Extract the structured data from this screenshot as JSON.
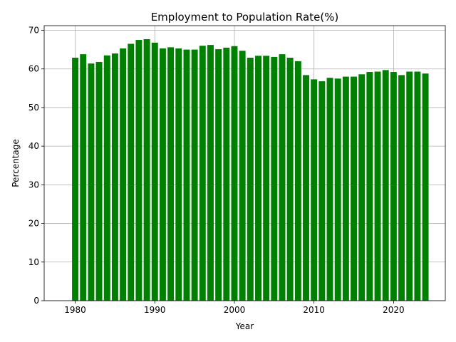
{
  "chart_data": {
    "type": "bar",
    "title": "Employment to Population Rate(%)",
    "xlabel": "Year",
    "ylabel": "Percentage",
    "bar_color": "#008000",
    "grid": true,
    "xlim": [
      1976.1,
      2026.5
    ],
    "ylim": [
      0,
      71.2
    ],
    "xticks": [
      1980,
      1990,
      2000,
      2010,
      2020
    ],
    "yticks": [
      0,
      10,
      20,
      30,
      40,
      50,
      60,
      70
    ],
    "x": [
      1980,
      1981,
      1982,
      1983,
      1984,
      1985,
      1986,
      1987,
      1988,
      1989,
      1990,
      1991,
      1992,
      1993,
      1994,
      1995,
      1996,
      1997,
      1998,
      1999,
      2000,
      2001,
      2002,
      2003,
      2004,
      2005,
      2006,
      2007,
      2008,
      2009,
      2010,
      2011,
      2012,
      2013,
      2014,
      2015,
      2016,
      2017,
      2018,
      2019,
      2020,
      2021,
      2022,
      2023,
      2024
    ],
    "values": [
      62.9,
      63.8,
      61.4,
      61.8,
      63.5,
      64.0,
      65.3,
      66.5,
      67.5,
      67.7,
      66.8,
      65.3,
      65.6,
      65.3,
      65.0,
      65.0,
      66.0,
      66.2,
      65.1,
      65.5,
      65.9,
      64.7,
      62.9,
      63.4,
      63.4,
      63.1,
      63.8,
      62.9,
      62.0,
      58.4,
      57.3,
      56.8,
      57.7,
      57.5,
      58.0,
      58.0,
      58.6,
      59.2,
      59.3,
      59.7,
      59.2,
      58.4,
      59.3,
      59.3,
      58.8
    ]
  }
}
